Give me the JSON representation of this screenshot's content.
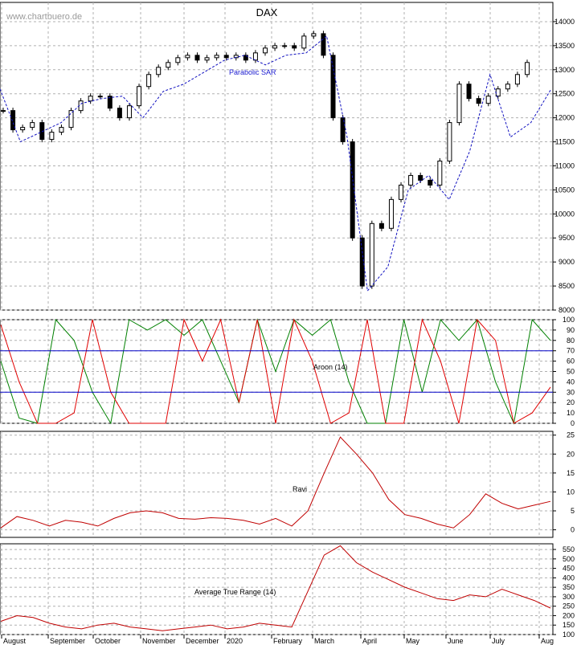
{
  "watermark": "www.chartbuero.de",
  "chart_data": [
    {
      "type": "candlestick",
      "title": "DAX",
      "annotation": "Parabolic SAR",
      "ylim": [
        8000,
        14400
      ],
      "yticks": [
        8000,
        8500,
        9000,
        9500,
        10000,
        10500,
        11000,
        11500,
        12000,
        12500,
        13000,
        13500,
        14000
      ],
      "series": [
        {
          "name": "DAX",
          "values": [
            12150,
            11750,
            11800,
            11900,
            11550,
            11700,
            11800,
            12150,
            12350,
            12450,
            12450,
            12200,
            12000,
            12250,
            12650,
            12900,
            13050,
            13150,
            13250,
            13300,
            13200,
            13250,
            13300,
            13250,
            13300,
            13200,
            13350,
            13450,
            13500,
            13500,
            13450,
            13700,
            13750,
            13300,
            12000,
            11500,
            9500,
            8500,
            9800,
            9700,
            10300,
            10600,
            10800,
            10700,
            10600,
            11100,
            11900,
            12700,
            12400,
            12300,
            12450,
            12600,
            12700,
            12900,
            13150
          ]
        },
        {
          "name": "Parabolic SAR",
          "values": [
            12600,
            11500,
            11700,
            11900,
            12300,
            12400,
            12450,
            12000,
            12550,
            12700,
            12950,
            13200,
            13300,
            13100,
            13300,
            13350,
            13700,
            11600,
            8400,
            8900,
            10500,
            10800,
            10300,
            11300,
            12900,
            11600,
            11900,
            12600
          ]
        }
      ]
    },
    {
      "type": "line",
      "annotation": "Aroon (14)",
      "ylim": [
        0,
        100
      ],
      "yticks": [
        0,
        10,
        20,
        30,
        40,
        50,
        60,
        70,
        80,
        90,
        100
      ],
      "reference_lines": [
        70,
        30
      ],
      "series": [
        {
          "name": "Aroon Up",
          "color": "#008000",
          "values": [
            60,
            5,
            0,
            100,
            80,
            30,
            0,
            100,
            90,
            100,
            85,
            100,
            60,
            20,
            100,
            50,
            100,
            85,
            100,
            40,
            0,
            0,
            100,
            30,
            100,
            80,
            100,
            40,
            0,
            100,
            80
          ]
        },
        {
          "name": "Aroon Down",
          "color": "#e00000",
          "values": [
            95,
            40,
            0,
            0,
            10,
            100,
            30,
            0,
            0,
            0,
            100,
            60,
            100,
            20,
            100,
            0,
            100,
            60,
            0,
            10,
            100,
            0,
            0,
            100,
            60,
            0,
            100,
            80,
            0,
            10,
            35
          ]
        }
      ]
    },
    {
      "type": "line",
      "annotation": "Ravi",
      "ylim": [
        -2,
        26
      ],
      "yticks": [
        0,
        5,
        10,
        15,
        20,
        25
      ],
      "series": [
        {
          "name": "Ravi",
          "color": "#c00000",
          "values": [
            0.5,
            3.5,
            2.5,
            1.0,
            2.5,
            2.0,
            1.0,
            3.0,
            4.5,
            5.0,
            4.5,
            3.0,
            2.8,
            3.2,
            3.0,
            2.5,
            1.5,
            3.0,
            1.0,
            5.0,
            15.0,
            24.5,
            20.0,
            15.0,
            8.0,
            4.0,
            3.0,
            1.5,
            0.5,
            4.0,
            9.5,
            7.0,
            5.5,
            6.5,
            7.5
          ]
        }
      ]
    },
    {
      "type": "line",
      "annotation": "Average True Range (14)",
      "ylim": [
        100,
        580
      ],
      "yticks": [
        100,
        150,
        200,
        250,
        300,
        350,
        400,
        450,
        500,
        550
      ],
      "series": [
        {
          "name": "Average True Range (14)",
          "color": "#c00000",
          "values": [
            170,
            200,
            190,
            160,
            140,
            130,
            150,
            160,
            140,
            130,
            120,
            130,
            140,
            150,
            130,
            140,
            160,
            150,
            140,
            330,
            520,
            570,
            480,
            430,
            390,
            350,
            320,
            290,
            280,
            310,
            300,
            340,
            310,
            280,
            240
          ]
        }
      ]
    }
  ],
  "x_axis": {
    "months": [
      "August",
      "September",
      "October",
      "November",
      "December",
      "2020",
      "February",
      "March",
      "April",
      "May",
      "June",
      "July",
      "Aug"
    ]
  }
}
